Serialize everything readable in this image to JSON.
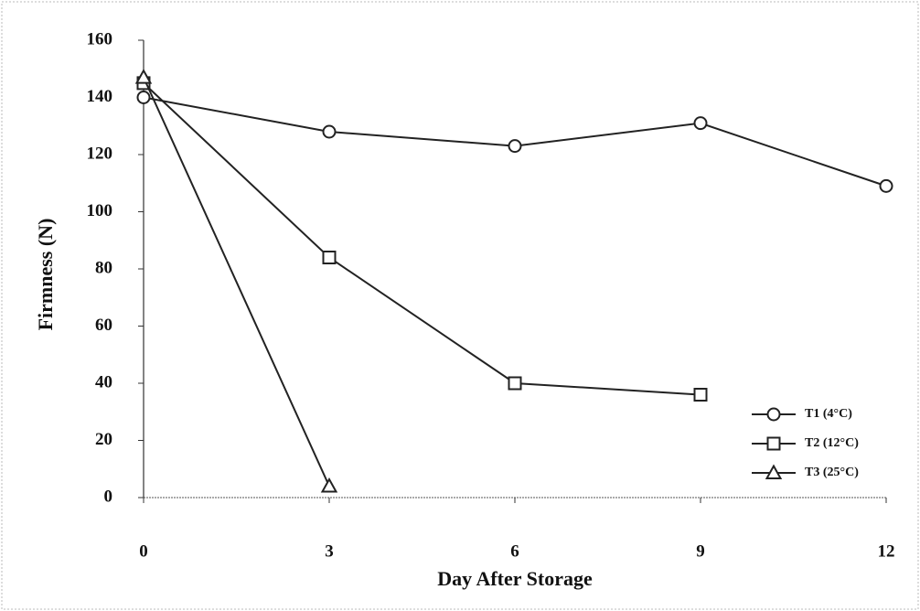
{
  "chart_data": {
    "type": "line",
    "x_label": "Day After Storage",
    "y_label": "Firmness (N)",
    "x": [
      0,
      3,
      6,
      9,
      12
    ],
    "series": [
      {
        "name": "T1 (4°C)",
        "color": "#222222",
        "marker": "circle",
        "values": [
          140,
          128,
          123,
          131,
          109
        ]
      },
      {
        "name": "T2 (12°C)",
        "color": "#222222",
        "marker": "square",
        "values": [
          145,
          84,
          40,
          36,
          null
        ]
      },
      {
        "name": "T3 (25°C)",
        "color": "#222222",
        "marker": "triangle",
        "values": [
          147,
          4,
          null,
          null,
          null
        ]
      }
    ],
    "xlim": [
      0,
      12
    ],
    "xticks": [
      0,
      3,
      6,
      9,
      12
    ],
    "ylim": [
      0,
      160
    ],
    "yticks": [
      0,
      20,
      40,
      60,
      80,
      100,
      120,
      140,
      160
    ],
    "legend": "lower-right",
    "grid": false
  }
}
